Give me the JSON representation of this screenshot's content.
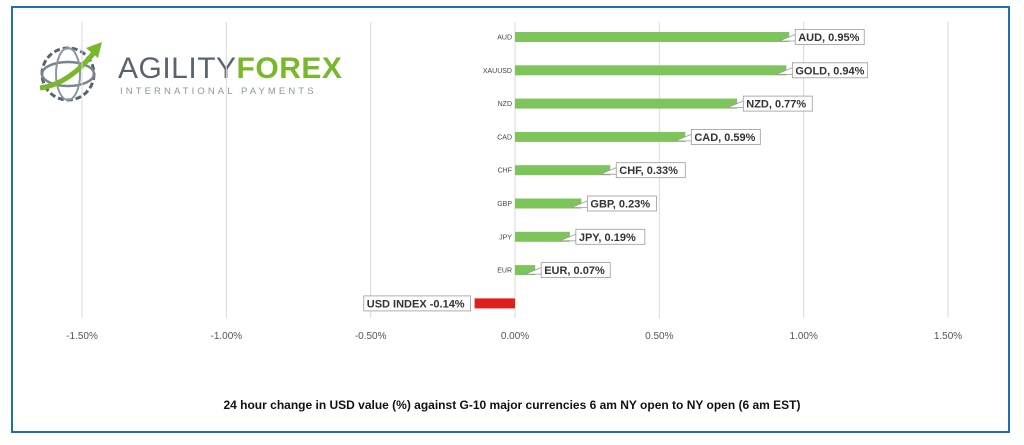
{
  "logo": {
    "word_part1": "AGILITY",
    "word_part2": "FOREX",
    "tagline": "INTERNATIONAL PAYMENTS"
  },
  "caption": "24 hour change in  USD value (%)  against  G-10 major currencies  6 am NY open to NY open  (6 am EST)",
  "colors": {
    "positive_bar": "#7dc45a",
    "negative_bar": "#e01e1e",
    "border": "#1f6fb2",
    "grid": "#d9d9d9"
  },
  "chart_data": {
    "type": "bar",
    "orientation": "horizontal",
    "categories": [
      "AUD",
      "XAUUSD",
      "NZD",
      "CAD",
      "CHF",
      "GBP",
      "JPY",
      "EUR",
      ""
    ],
    "values": [
      0.95,
      0.94,
      0.77,
      0.59,
      0.33,
      0.23,
      0.19,
      0.07,
      -0.14
    ],
    "data_labels": [
      "AUD, 0.95%",
      "GOLD, 0.94%",
      "NZD, 0.77%",
      "CAD, 0.59%",
      "CHF, 0.33%",
      "GBP, 0.23%",
      "JPY, 0.19%",
      "EUR, 0.07%",
      "USD INDEX -0.14%"
    ],
    "x_ticks": [
      -1.5,
      -1.0,
      -0.5,
      0.0,
      0.5,
      1.0,
      1.5
    ],
    "x_tick_labels": [
      "-1.50%",
      "-1.00%",
      "-0.50%",
      "0.00%",
      "0.50%",
      "1.00%",
      "1.50%"
    ],
    "xlim": [
      -1.5,
      1.5
    ],
    "unit": "%",
    "grid": true,
    "legend": "none"
  }
}
